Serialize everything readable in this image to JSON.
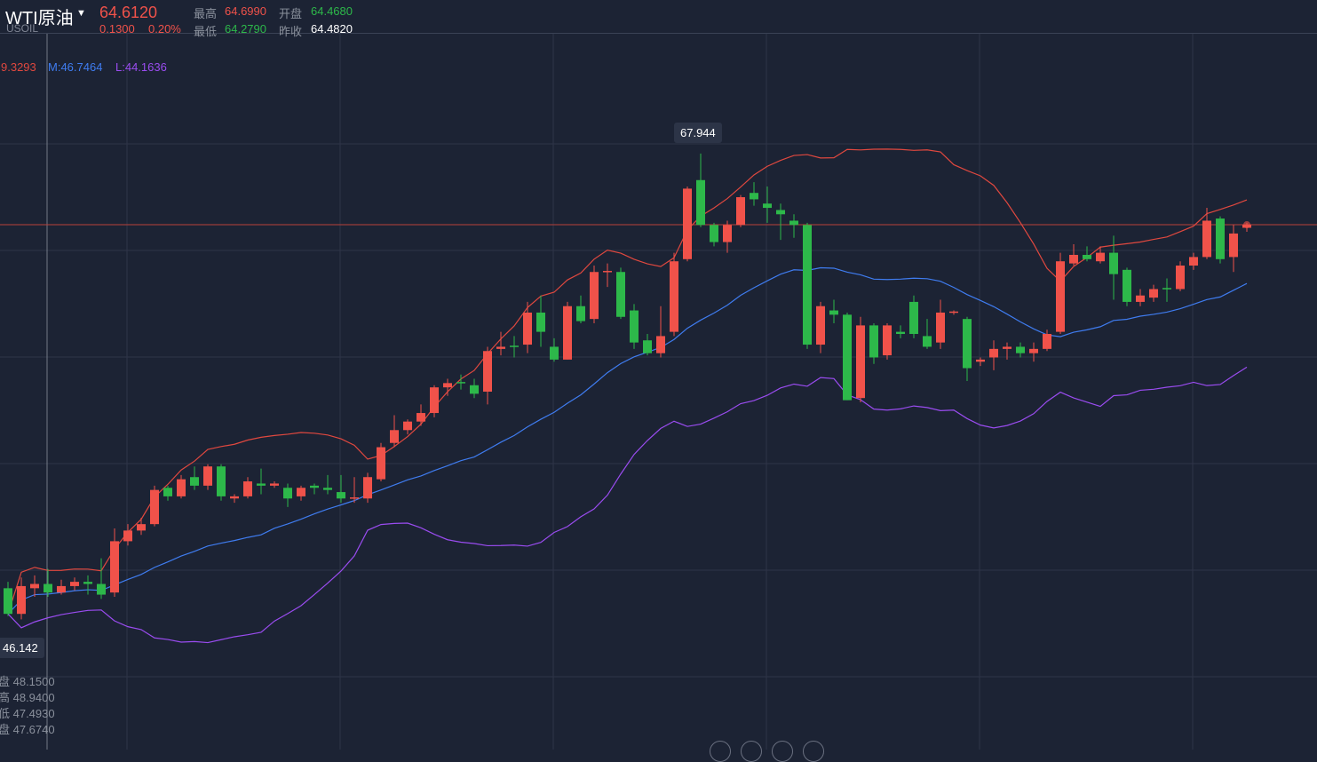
{
  "header": {
    "symbol": "WTI原油",
    "code": "USOIL",
    "price": "64.6120",
    "change": "0.1300",
    "change_pct": "0.20%",
    "high_label": "最高",
    "high": "64.6990",
    "open_label": "开盘",
    "open": "64.4680",
    "low_label": "最低",
    "low": "64.2790",
    "prev_label": "昨收",
    "prev": "64.4820"
  },
  "indicator": {
    "upper": "9.3293",
    "middle": "M:46.7464",
    "lower": "L:44.1636"
  },
  "tooltips": {
    "max": "67.944",
    "min": "46.142"
  },
  "crosshair_info": [
    "盘 48.1500",
    "高 48.9400",
    "低 47.4930",
    "盘 47.6740"
  ],
  "colors": {
    "up": "#f0524a",
    "down": "#2db84a",
    "upper": "#e0483f",
    "middle": "#3f7cf0",
    "lower": "#9a4cf0",
    "bg": "#1c2334",
    "grid": "#2e3548"
  },
  "chart_data": {
    "type": "candlestick",
    "current_price": 64.612,
    "ylim": [
      40.05,
      73.59
    ],
    "indicator": "BOLL(20)",
    "candles": [
      [
        47.6,
        46.4,
        47.9,
        46.3
      ],
      [
        46.4,
        47.7,
        48.1,
        46.142
      ],
      [
        47.6,
        47.8,
        48.2,
        47.2
      ],
      [
        47.8,
        47.4,
        48.5,
        47.2
      ],
      [
        47.4,
        47.7,
        48.0,
        47.3
      ],
      [
        47.7,
        47.9,
        48.1,
        47.5
      ],
      [
        47.9,
        47.8,
        48.2,
        47.3
      ],
      [
        47.8,
        47.3,
        49.0,
        47.1
      ],
      [
        47.4,
        49.8,
        50.4,
        47.2
      ],
      [
        49.8,
        50.3,
        50.6,
        49.6
      ],
      [
        50.3,
        50.6,
        50.9,
        50.1
      ],
      [
        50.6,
        52.2,
        52.4,
        50.5
      ],
      [
        52.3,
        51.9,
        52.4,
        51.7
      ],
      [
        51.9,
        52.7,
        52.9,
        51.8
      ],
      [
        52.8,
        52.4,
        53.3,
        52.2
      ],
      [
        52.4,
        53.3,
        53.4,
        52.2
      ],
      [
        53.3,
        51.9,
        53.4,
        51.7
      ],
      [
        51.8,
        51.9,
        52.0,
        51.6
      ],
      [
        51.9,
        52.6,
        52.8,
        51.8
      ],
      [
        52.5,
        52.4,
        53.2,
        52.0
      ],
      [
        52.4,
        52.5,
        52.6,
        52.3
      ],
      [
        52.3,
        51.8,
        52.5,
        51.4
      ],
      [
        51.9,
        52.3,
        52.4,
        51.7
      ],
      [
        52.4,
        52.3,
        52.5,
        52.0
      ],
      [
        52.3,
        52.2,
        52.9,
        52.0
      ],
      [
        52.1,
        51.8,
        52.9,
        51.6
      ],
      [
        51.8,
        51.85,
        52.8,
        51.6
      ],
      [
        51.8,
        52.8,
        53.0,
        51.6
      ],
      [
        52.7,
        54.2,
        54.4,
        52.6
      ],
      [
        54.4,
        55.0,
        55.7,
        54.2
      ],
      [
        55.0,
        55.4,
        55.5,
        54.8
      ],
      [
        55.4,
        55.8,
        56.2,
        55.2
      ],
      [
        55.8,
        57.0,
        57.1,
        55.6
      ],
      [
        57.0,
        57.2,
        57.4,
        56.6
      ],
      [
        57.25,
        57.2,
        57.6,
        56.9
      ],
      [
        57.1,
        56.7,
        57.4,
        56.5
      ],
      [
        56.8,
        58.7,
        58.9,
        56.2
      ],
      [
        58.8,
        58.9,
        59.6,
        58.5
      ],
      [
        58.95,
        58.9,
        59.4,
        58.4
      ],
      [
        59.0,
        60.5,
        61.0,
        58.6
      ],
      [
        60.5,
        59.6,
        61.3,
        58.9
      ],
      [
        58.9,
        58.3,
        59.3,
        58.2
      ],
      [
        58.3,
        60.8,
        61.0,
        58.3
      ],
      [
        60.8,
        60.1,
        61.3,
        60.0
      ],
      [
        60.2,
        62.4,
        62.7,
        60.0
      ],
      [
        62.4,
        62.45,
        62.8,
        61.7
      ],
      [
        62.4,
        60.3,
        62.6,
        60.2
      ],
      [
        60.6,
        59.1,
        60.9,
        58.8
      ],
      [
        59.2,
        58.6,
        59.5,
        58.5
      ],
      [
        58.6,
        59.4,
        60.8,
        58.4
      ],
      [
        59.6,
        62.9,
        63.3,
        59.4
      ],
      [
        63.0,
        66.3,
        66.4,
        62.9
      ],
      [
        66.7,
        64.6,
        67.944,
        64.5
      ],
      [
        64.6,
        63.8,
        64.7,
        63.6
      ],
      [
        63.8,
        64.6,
        64.8,
        63.3
      ],
      [
        64.6,
        65.9,
        66.0,
        64.5
      ],
      [
        66.1,
        65.8,
        66.6,
        65.5
      ],
      [
        65.6,
        65.4,
        66.4,
        64.7
      ],
      [
        65.3,
        65.1,
        65.6,
        63.9
      ],
      [
        64.8,
        64.6,
        65.1,
        64.0
      ],
      [
        64.6,
        59.0,
        64.7,
        58.8
      ],
      [
        59.0,
        60.8,
        61.0,
        58.6
      ],
      [
        60.6,
        60.4,
        61.1,
        60.0
      ],
      [
        60.4,
        56.4,
        60.5,
        56.4
      ],
      [
        56.5,
        59.9,
        60.3,
        56.3
      ],
      [
        59.9,
        58.4,
        60.0,
        58.1
      ],
      [
        58.5,
        59.9,
        60.0,
        58.3
      ],
      [
        59.6,
        59.5,
        59.9,
        59.3
      ],
      [
        61.0,
        59.5,
        61.3,
        59.3
      ],
      [
        59.4,
        58.9,
        60.2,
        58.8
      ],
      [
        59.1,
        60.5,
        61.1,
        58.8
      ],
      [
        60.5,
        60.55,
        60.6,
        60.4
      ],
      [
        60.2,
        57.9,
        60.3,
        57.3
      ],
      [
        58.2,
        58.3,
        58.4,
        58.0
      ],
      [
        58.4,
        58.8,
        59.2,
        57.8
      ],
      [
        58.8,
        58.9,
        59.1,
        58.3
      ],
      [
        58.9,
        58.6,
        59.1,
        58.4
      ],
      [
        58.6,
        58.8,
        59.1,
        58.2
      ],
      [
        58.8,
        59.5,
        59.7,
        58.7
      ],
      [
        59.6,
        62.9,
        63.3,
        59.5
      ],
      [
        62.8,
        63.2,
        63.7,
        62.7
      ],
      [
        63.2,
        63.0,
        63.6,
        62.9
      ],
      [
        62.9,
        63.3,
        63.6,
        62.8
      ],
      [
        63.3,
        62.3,
        64.1,
        61.1
      ],
      [
        62.5,
        61.0,
        62.6,
        60.8
      ],
      [
        61.0,
        61.3,
        61.6,
        60.8
      ],
      [
        61.2,
        61.6,
        61.8,
        61.0
      ],
      [
        61.65,
        61.6,
        62.1,
        61.0
      ],
      [
        61.6,
        62.7,
        62.9,
        61.5
      ],
      [
        62.7,
        63.1,
        63.3,
        62.5
      ],
      [
        63.1,
        64.8,
        65.4,
        63.0
      ],
      [
        64.9,
        63.0,
        65.0,
        62.8
      ],
      [
        63.1,
        64.2,
        64.6,
        62.4
      ],
      [
        64.468,
        64.612,
        64.699,
        64.279
      ]
    ]
  }
}
